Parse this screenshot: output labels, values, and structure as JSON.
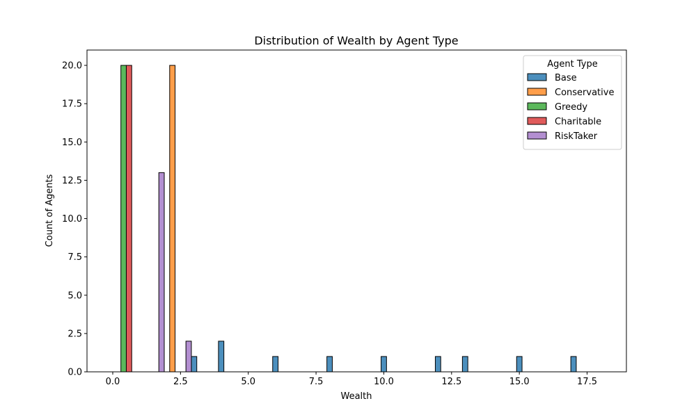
{
  "chart_data": {
    "type": "bar",
    "title": "Distribution of Wealth by Agent Type",
    "xlabel": "Wealth",
    "ylabel": "Count of Agents",
    "xlim": [
      -0.95,
      18.95
    ],
    "ylim": [
      0,
      21
    ],
    "xticks": [
      0.0,
      2.5,
      5.0,
      7.5,
      10.0,
      12.5,
      15.0,
      17.5
    ],
    "xtick_labels": [
      "0.0",
      "2.5",
      "5.0",
      "7.5",
      "10.0",
      "12.5",
      "15.0",
      "17.5"
    ],
    "yticks": [
      0.0,
      2.5,
      5.0,
      7.5,
      10.0,
      12.5,
      15.0,
      17.5,
      20.0
    ],
    "ytick_labels": [
      "0.0",
      "2.5",
      "5.0",
      "7.5",
      "10.0",
      "12.5",
      "15.0",
      "17.5",
      "20.0"
    ],
    "bar_width": 0.2,
    "grid": false,
    "legend": {
      "title": "Agent Type",
      "placement": "upper-right"
    },
    "series": [
      {
        "name": "Base",
        "color": "#4c8fbd",
        "bars": [
          {
            "x": 3.0,
            "value": 1
          },
          {
            "x": 4.0,
            "value": 2
          },
          {
            "x": 6.0,
            "value": 1
          },
          {
            "x": 8.0,
            "value": 1
          },
          {
            "x": 10.0,
            "value": 1
          },
          {
            "x": 12.0,
            "value": 1
          },
          {
            "x": 13.0,
            "value": 1
          },
          {
            "x": 15.0,
            "value": 1
          },
          {
            "x": 17.0,
            "value": 1
          }
        ]
      },
      {
        "name": "Conservative",
        "color": "#ff9e4a",
        "bars": [
          {
            "x": 2.2,
            "value": 20
          }
        ]
      },
      {
        "name": "Greedy",
        "color": "#5cb85c",
        "bars": [
          {
            "x": 0.4,
            "value": 20
          }
        ]
      },
      {
        "name": "Charitable",
        "color": "#e05b5b",
        "bars": [
          {
            "x": 0.6,
            "value": 20
          }
        ]
      },
      {
        "name": "RiskTaker",
        "color": "#b38fd1",
        "bars": [
          {
            "x": 1.8,
            "value": 13
          },
          {
            "x": 2.8,
            "value": 2
          }
        ]
      }
    ]
  }
}
